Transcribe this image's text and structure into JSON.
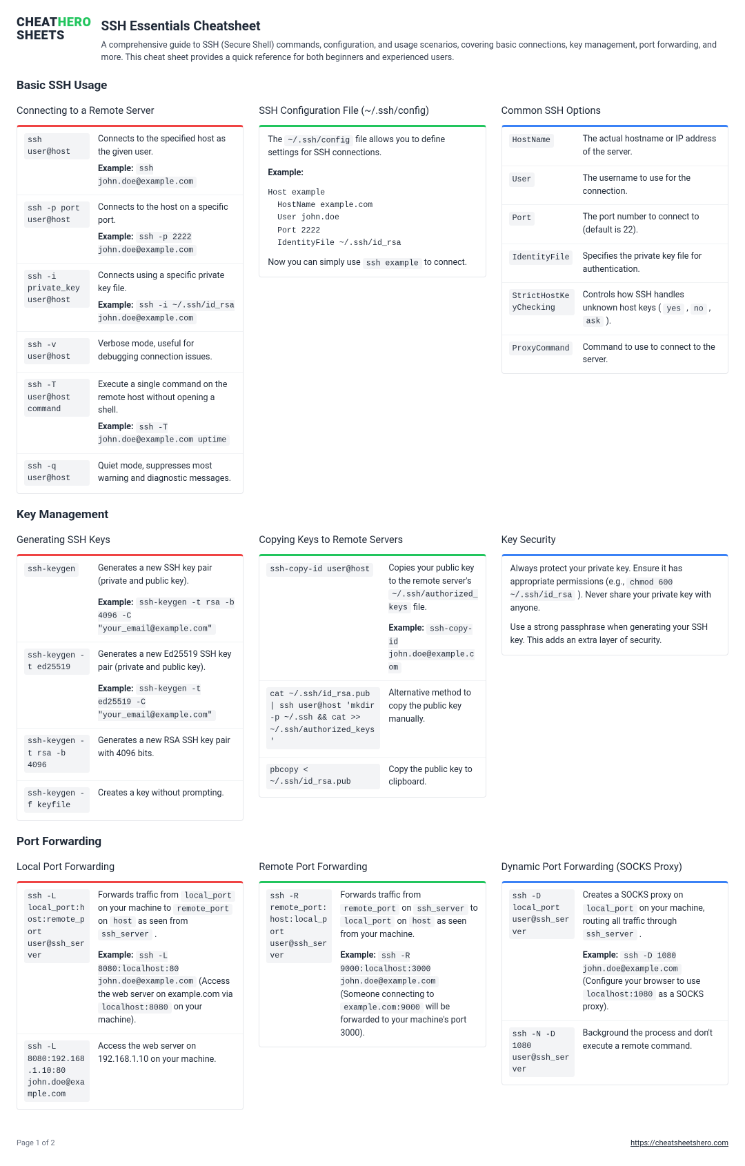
{
  "logo": {
    "line1": "CHEAT",
    "line2": "SHEETS",
    "hero": "HERO"
  },
  "header": {
    "title": "SSH Essentials Cheatsheet",
    "subtitle": "A comprehensive guide to SSH (Secure Shell) commands, configuration, and usage scenarios, covering basic connections, key management, port forwarding, and more. This cheat sheet provides a quick reference for both beginners and experienced users."
  },
  "s1": {
    "title": "Basic SSH Usage",
    "c1": {
      "title": "Connecting to a Remote Server",
      "rows": [
        {
          "cmd": "ssh user@host",
          "desc": "Connects to the specified host as the given user.",
          "ex": "ssh john.doe@example.com"
        },
        {
          "cmd": "ssh -p port user@host",
          "desc": "Connects to the host on a specific port.",
          "ex": "ssh -p 2222 john.doe@example.com"
        },
        {
          "cmd": "ssh -i private_key user@host",
          "desc": "Connects using a specific private key file.",
          "ex": "ssh -i ~/.ssh/id_rsa john.doe@example.com"
        },
        {
          "cmd": "ssh -v user@host",
          "desc": "Verbose mode, useful for debugging connection issues."
        },
        {
          "cmd": "ssh -T user@host command",
          "desc": "Execute a single command on the remote host without opening a shell.",
          "ex": "ssh -T john.doe@example.com uptime"
        },
        {
          "cmd": "ssh -q user@host",
          "desc": "Quiet mode, suppresses most warning and diagnostic messages."
        }
      ]
    },
    "c2": {
      "title": "SSH Configuration File (~/.ssh/config)",
      "intro_a": "The ",
      "intro_code": "~/.ssh/config",
      "intro_b": " file allows you to define settings for SSH connections.",
      "example_label": "Example:",
      "example_code": "Host example\n  HostName example.com\n  User john.doe\n  Port 2222\n  IdentityFile ~/.ssh/id_rsa",
      "outro_a": "Now you can simply use ",
      "outro_code": "ssh example",
      "outro_b": " to connect."
    },
    "c3": {
      "title": "Common SSH Options",
      "rows": [
        {
          "cmd": "HostName",
          "desc": "The actual hostname or IP address of the server."
        },
        {
          "cmd": "User",
          "desc": "The username to use for the connection."
        },
        {
          "cmd": "Port",
          "desc": "The port number to connect to (default is 22)."
        },
        {
          "cmd": "IdentityFile",
          "desc": "Specifies the private key file for authentication."
        },
        {
          "cmd": "StrictHostKeyChecking",
          "html": "Controls how SSH handles unknown host keys ( <code>yes</code> , <code>no</code> , <code>ask</code> )."
        },
        {
          "cmd": "ProxyCommand",
          "desc": "Command to use to connect to the server."
        }
      ]
    }
  },
  "s2": {
    "title": "Key Management",
    "c1": {
      "title": "Generating SSH Keys",
      "rows": [
        {
          "cmd": "ssh-keygen",
          "desc": "Generates a new SSH key pair (private and public key).",
          "ex": "ssh-keygen -t rsa -b 4096 -C \"your_email@example.com\"",
          "gap": true
        },
        {
          "cmd": "ssh-keygen -t ed25519",
          "desc": "Generates a new Ed25519 SSH key pair (private and public key).",
          "ex": "ssh-keygen -t ed25519 -C \"your_email@example.com\"",
          "gap": true
        },
        {
          "cmd": "ssh-keygen -t rsa -b 4096",
          "desc": "Generates a new RSA SSH key pair with 4096 bits."
        },
        {
          "cmd": "ssh-keygen -f keyfile",
          "desc": "Creates a key without prompting."
        }
      ]
    },
    "c2": {
      "title": "Copying Keys to Remote Servers",
      "rows": [
        {
          "cmd": "ssh-copy-id user@host",
          "html": "Copies your public key to the remote server's <code>~/.ssh/authorized_keys</code> file.",
          "ex": "ssh-copy-id john.doe@example.com",
          "gap": true
        },
        {
          "cmd": "cat ~/.ssh/id_rsa.pub | ssh user@host 'mkdir -p ~/.ssh && cat >> ~/.ssh/authorized_keys'",
          "desc": "Alternative method to copy the public key manually."
        },
        {
          "cmd": "pbcopy < ~/.ssh/id_rsa.pub",
          "desc": "Copy the public key to clipboard."
        }
      ]
    },
    "c3": {
      "title": "Key Security",
      "p1_a": "Always protect your private key. Ensure it has appropriate permissions (e.g., ",
      "p1_code": "chmod 600 ~/.ssh/id_rsa",
      "p1_b": " ). Never share your private key with anyone.",
      "p2": "Use a strong passphrase when generating your SSH key. This adds an extra layer of security."
    }
  },
  "s3": {
    "title": "Port Forwarding",
    "c1": {
      "title": "Local Port Forwarding",
      "rows": [
        {
          "cmd": "ssh -L local_port:host:remote_port user@ssh_server",
          "html": "Forwards traffic from <code>local_port</code> on your machine to <code>remote_port</code> on <code>host</code> as seen from <code>ssh_server</code> .",
          "exhtml": "<code>ssh -L 8080:localhost:80 john.doe@example.com</code> (Access the web server on example.com via <code>localhost:8080</code> on your machine).",
          "gap": true
        },
        {
          "cmd": "ssh -L 8080:192.168.1.10:80 john.doe@example.com",
          "desc": "Access the web server on 192.168.1.10 on your machine."
        }
      ]
    },
    "c2": {
      "title": "Remote Port Forwarding",
      "rows": [
        {
          "cmd": "ssh -R remote_port:host:local_port user@ssh_server",
          "html": "Forwards traffic from <code>remote_port</code> on <code>ssh_server</code> to <code>local_port</code> on <code>host</code> as seen from your machine.",
          "exhtml": "<code>ssh -R 9000:localhost:3000 john.doe@example.com</code> (Someone connecting to <code>example.com:9000</code> will be forwarded to your machine's port 3000).",
          "gap": true
        }
      ]
    },
    "c3": {
      "title": "Dynamic Port Forwarding (SOCKS Proxy)",
      "rows": [
        {
          "cmd": "ssh -D local_port user@ssh_server",
          "html": "Creates a SOCKS proxy on <code>local_port</code> on your machine, routing all traffic through <code>ssh_server</code> .",
          "exhtml": "<code>ssh -D 1080 john.doe@example.com</code> (Configure your browser to use <code>localhost:1080</code> as a SOCKS proxy).",
          "gap": true
        },
        {
          "cmd": "ssh -N -D 1080 user@ssh_server",
          "desc": "Background the process and don't execute a remote command."
        }
      ]
    }
  },
  "footer": {
    "page": "Page 1 of 2",
    "url": "https://cheatsheetshero.com"
  }
}
